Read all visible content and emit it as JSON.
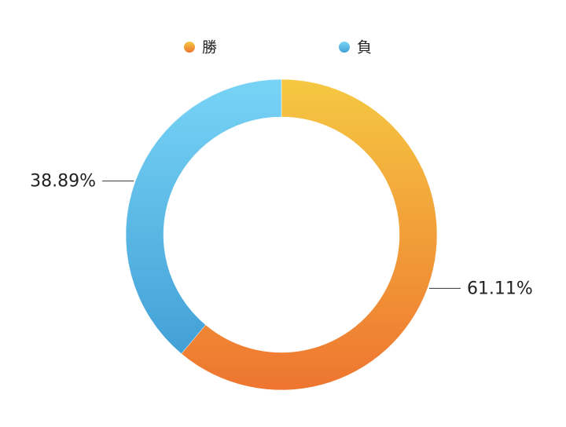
{
  "chart_data": {
    "type": "donut",
    "categories": [
      "勝",
      "負"
    ],
    "values": [
      61.11,
      38.89
    ],
    "value_labels": [
      "61.11%",
      "38.89%"
    ],
    "colors": [
      "#f08a30",
      "#58b6e6"
    ],
    "gradient_stops": [
      [
        "#f5c842",
        "#ee7530"
      ],
      [
        "#78d4f6",
        "#42a0d6"
      ]
    ],
    "legend": "top"
  }
}
